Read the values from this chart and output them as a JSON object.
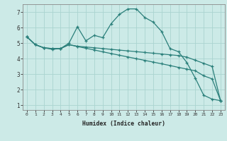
{
  "title": "",
  "xlabel": "Humidex (Indice chaleur)",
  "background_color": "#cceae7",
  "line_color": "#2a7f7a",
  "grid_color": "#aad4d0",
  "xlim": [
    -0.5,
    23.5
  ],
  "ylim": [
    0.7,
    7.5
  ],
  "xticks": [
    0,
    1,
    2,
    3,
    4,
    5,
    6,
    7,
    8,
    9,
    10,
    11,
    12,
    13,
    14,
    15,
    16,
    17,
    18,
    19,
    20,
    21,
    22,
    23
  ],
  "yticks": [
    1,
    2,
    3,
    4,
    5,
    6,
    7
  ],
  "line1_x": [
    0,
    1,
    2,
    3,
    4,
    5,
    6,
    7,
    8,
    9,
    10,
    11,
    12,
    13,
    14,
    15,
    16,
    17,
    18,
    19,
    20,
    21,
    22,
    23
  ],
  "line1_y": [
    5.4,
    4.9,
    4.7,
    4.6,
    4.65,
    5.0,
    6.05,
    5.15,
    5.5,
    5.35,
    6.25,
    6.85,
    7.2,
    7.2,
    6.65,
    6.35,
    5.75,
    4.65,
    4.45,
    3.75,
    2.75,
    1.65,
    1.4,
    1.3
  ],
  "line2_x": [
    0,
    1,
    2,
    3,
    4,
    5,
    6,
    7,
    8,
    9,
    10,
    11,
    12,
    13,
    14,
    15,
    16,
    17,
    18,
    19,
    20,
    21,
    22,
    23
  ],
  "line2_y": [
    5.4,
    4.9,
    4.7,
    4.65,
    4.65,
    4.9,
    4.8,
    4.75,
    4.7,
    4.65,
    4.6,
    4.55,
    4.5,
    4.45,
    4.4,
    4.35,
    4.3,
    4.25,
    4.2,
    4.1,
    3.9,
    3.7,
    3.5,
    1.3
  ],
  "line3_x": [
    0,
    1,
    2,
    3,
    4,
    5,
    6,
    7,
    8,
    9,
    10,
    11,
    12,
    13,
    14,
    15,
    16,
    17,
    18,
    19,
    20,
    21,
    22,
    23
  ],
  "line3_y": [
    5.4,
    4.9,
    4.7,
    4.65,
    4.65,
    4.9,
    4.78,
    4.67,
    4.56,
    4.44,
    4.33,
    4.22,
    4.11,
    4.0,
    3.89,
    3.78,
    3.67,
    3.56,
    3.44,
    3.33,
    3.22,
    2.9,
    2.7,
    1.3
  ]
}
